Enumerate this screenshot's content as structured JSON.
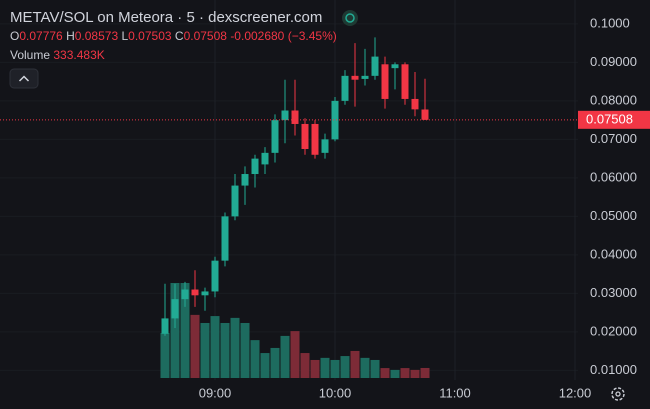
{
  "chart_data": {
    "type": "candlestick",
    "title": "METAV/SOL on Meteora · 5 · dexscreener.com",
    "legend": {
      "open_label": "O",
      "open": "0.07776",
      "high_label": "H",
      "high": "0.08573",
      "low_label": "L",
      "low": "0.07503",
      "close_label": "C",
      "close": "0.07508",
      "change": "-0.002680",
      "change_pct": "(−3.45%)",
      "volume_label": "Volume",
      "volume": "333.483K"
    },
    "x": [
      "08:35",
      "08:40",
      "08:45",
      "08:50",
      "08:55",
      "09:00",
      "09:05",
      "09:10",
      "09:15",
      "09:20",
      "09:25",
      "09:30",
      "09:35",
      "09:40",
      "09:45",
      "09:50",
      "09:55",
      "10:00",
      "10:05",
      "10:10",
      "10:15",
      "10:20",
      "10:25",
      "10:30",
      "10:35",
      "10:40",
      "10:45"
    ],
    "open": [
      0.0195,
      0.0235,
      0.0285,
      0.031,
      0.0295,
      0.0305,
      0.0385,
      0.05,
      0.058,
      0.061,
      0.0635,
      0.0665,
      0.075,
      0.0775,
      0.074,
      0.074,
      0.0665,
      0.07,
      0.08,
      0.0865,
      0.0857,
      0.0865,
      0.0895,
      0.0885,
      0.0895,
      0.0805,
      0.07776
    ],
    "high": [
      0.0325,
      0.0325,
      0.033,
      0.036,
      0.0315,
      0.0395,
      0.051,
      0.061,
      0.063,
      0.066,
      0.068,
      0.0765,
      0.0855,
      0.0855,
      0.0755,
      0.075,
      0.0715,
      0.081,
      0.088,
      0.095,
      0.0935,
      0.0965,
      0.0915,
      0.09,
      0.09,
      0.0875,
      0.08573
    ],
    "low": [
      0.019,
      0.021,
      0.0265,
      0.0265,
      0.0255,
      0.029,
      0.037,
      0.049,
      0.053,
      0.0575,
      0.061,
      0.064,
      0.069,
      0.071,
      0.066,
      0.065,
      0.065,
      0.0695,
      0.079,
      0.0785,
      0.084,
      0.0855,
      0.078,
      0.083,
      0.079,
      0.076,
      0.07503
    ],
    "close": [
      0.0235,
      0.0285,
      0.031,
      0.0295,
      0.0305,
      0.0385,
      0.05,
      0.058,
      0.061,
      0.065,
      0.0665,
      0.075,
      0.0775,
      0.074,
      0.0675,
      0.066,
      0.07,
      0.08,
      0.0865,
      0.0855,
      0.0865,
      0.0915,
      0.0805,
      0.0895,
      0.0805,
      0.0778,
      0.07508
    ],
    "volume": [
      1500000,
      3160000,
      3160000,
      2100000,
      1830000,
      2060000,
      1830000,
      2000000,
      1830000,
      1260000,
      830000,
      1000000,
      1400000,
      1560000,
      830000,
      600000,
      670000,
      600000,
      730000,
      900000,
      670000,
      600000,
      330000,
      270000,
      330000,
      270000,
      333483
    ],
    "up_color": "#22ab94",
    "down_color": "#f23645",
    "up_volume_color": "#1d6b5f",
    "down_volume_color": "#7d2b37",
    "ylim": [
      0.0075,
      0.1062
    ],
    "yticks": [
      {
        "value": 0.1,
        "label": "0.1000"
      },
      {
        "value": 0.09,
        "label": "0.09000"
      },
      {
        "value": 0.08,
        "label": "0.08000"
      },
      {
        "value": 0.07,
        "label": "0.07000"
      },
      {
        "value": 0.06,
        "label": "0.06000"
      },
      {
        "value": 0.05,
        "label": "0.05000"
      },
      {
        "value": 0.04,
        "label": "0.04000"
      },
      {
        "value": 0.03,
        "label": "0.03000"
      },
      {
        "value": 0.02,
        "label": "0.02000"
      },
      {
        "value": 0.01,
        "label": "0.01000"
      }
    ],
    "xticks": [
      "09:00",
      "10:00",
      "11:00",
      "12:00"
    ],
    "last_price": {
      "value": 0.07508,
      "label": "0.07508"
    }
  }
}
